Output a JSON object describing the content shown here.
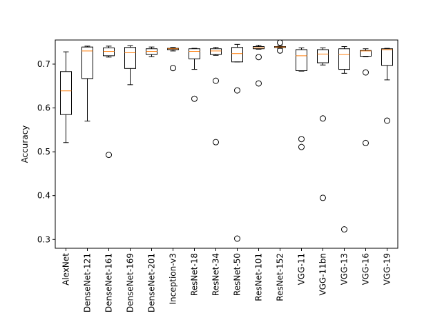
{
  "chart_data": {
    "type": "boxplot",
    "title": "",
    "xlabel": "",
    "ylabel": "Accuracy",
    "ylim": [
      0.28,
      0.755
    ],
    "yticks": [
      0.3,
      0.4,
      0.5,
      0.6,
      0.7
    ],
    "ytick_labels": [
      "0.3",
      "0.4",
      "0.5",
      "0.6",
      "0.7"
    ],
    "grid": false,
    "colors": {
      "box": "#000000",
      "median": "#ff7f0e",
      "outlier": "#000000"
    },
    "categories": [
      "AlexNet",
      "DenseNet-121",
      "DenseNet-161",
      "DenseNet-169",
      "DenseNet-201",
      "Inception-v3",
      "ResNet-18",
      "ResNet-34",
      "ResNet-50",
      "ResNet-101",
      "ResNet-152",
      "VGG-11",
      "VGG-11bn",
      "VGG-13",
      "VGG-16",
      "VGG-19"
    ],
    "boxes": [
      {
        "name": "AlexNet",
        "whislo": 0.521,
        "q1": 0.585,
        "med": 0.639,
        "q3": 0.683,
        "whishi": 0.728,
        "fliers": []
      },
      {
        "name": "DenseNet-121",
        "whislo": 0.57,
        "q1": 0.667,
        "med": 0.73,
        "q3": 0.739,
        "whishi": 0.741,
        "fliers": []
      },
      {
        "name": "DenseNet-161",
        "whislo": 0.716,
        "q1": 0.719,
        "med": 0.729,
        "q3": 0.737,
        "whishi": 0.741,
        "fliers": [
          0.493
        ]
      },
      {
        "name": "DenseNet-169",
        "whislo": 0.653,
        "q1": 0.69,
        "med": 0.726,
        "q3": 0.738,
        "whishi": 0.742,
        "fliers": []
      },
      {
        "name": "DenseNet-201",
        "whislo": 0.717,
        "q1": 0.722,
        "med": 0.729,
        "q3": 0.735,
        "whishi": 0.739,
        "fliers": []
      },
      {
        "name": "Inception-v3",
        "whislo": 0.73,
        "q1": 0.733,
        "med": 0.735,
        "q3": 0.736,
        "whishi": 0.738,
        "fliers": [
          0.691
        ]
      },
      {
        "name": "ResNet-18",
        "whislo": 0.688,
        "q1": 0.712,
        "med": 0.729,
        "q3": 0.735,
        "whishi": 0.736,
        "fliers": [
          0.621
        ]
      },
      {
        "name": "ResNet-34",
        "whislo": 0.72,
        "q1": 0.722,
        "med": 0.73,
        "q3": 0.735,
        "whishi": 0.738,
        "fliers": [
          0.662,
          0.522
        ]
      },
      {
        "name": "ResNet-50",
        "whislo": 0.705,
        "q1": 0.705,
        "med": 0.724,
        "q3": 0.738,
        "whishi": 0.745,
        "fliers": [
          0.64,
          0.302
        ]
      },
      {
        "name": "ResNet-101",
        "whislo": 0.734,
        "q1": 0.735,
        "med": 0.737,
        "q3": 0.74,
        "whishi": 0.743,
        "fliers": [
          0.716,
          0.656
        ]
      },
      {
        "name": "ResNet-152",
        "whislo": 0.736,
        "q1": 0.738,
        "med": 0.739,
        "q3": 0.74,
        "whishi": 0.741,
        "fliers": [
          0.749,
          0.731
        ]
      },
      {
        "name": "VGG-11",
        "whislo": 0.684,
        "q1": 0.685,
        "med": 0.719,
        "q3": 0.733,
        "whishi": 0.737,
        "fliers": [
          0.529,
          0.511
        ]
      },
      {
        "name": "VGG-11bn",
        "whislo": 0.698,
        "q1": 0.703,
        "med": 0.723,
        "q3": 0.733,
        "whishi": 0.737,
        "fliers": [
          0.576,
          0.395
        ]
      },
      {
        "name": "VGG-13",
        "whislo": 0.679,
        "q1": 0.688,
        "med": 0.722,
        "q3": 0.735,
        "whishi": 0.74,
        "fliers": [
          0.323
        ]
      },
      {
        "name": "VGG-16",
        "whislo": 0.717,
        "q1": 0.718,
        "med": 0.73,
        "q3": 0.731,
        "whishi": 0.735,
        "fliers": [
          0.681,
          0.52
        ]
      },
      {
        "name": "VGG-19",
        "whislo": 0.664,
        "q1": 0.697,
        "med": 0.733,
        "q3": 0.735,
        "whishi": 0.736,
        "fliers": [
          0.571
        ]
      }
    ]
  }
}
